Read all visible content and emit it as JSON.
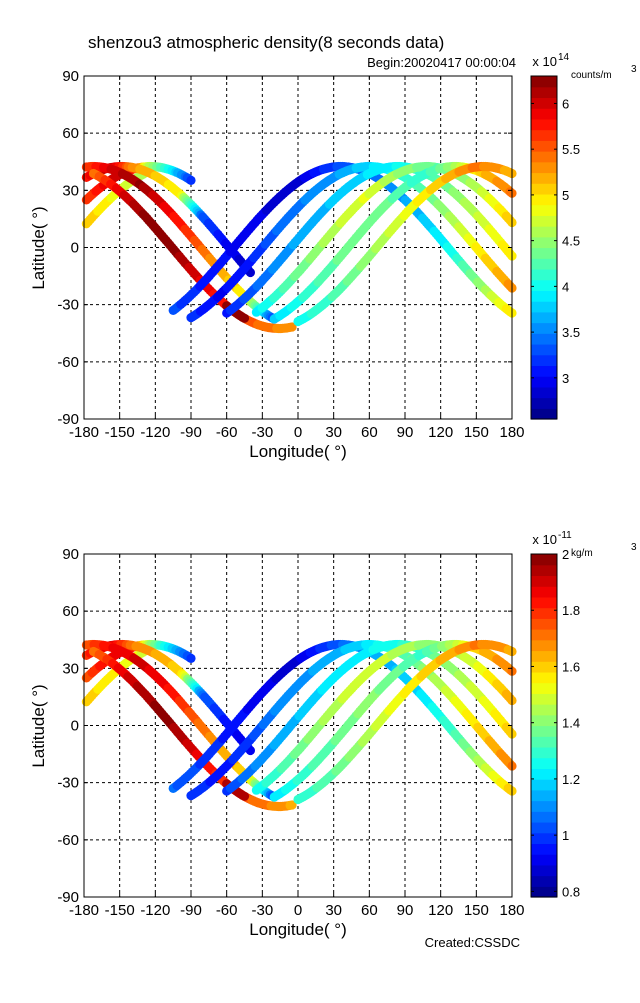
{
  "title": "shenzou3 atmospheric density(8 seconds data)",
  "begin_label": "Begin:20020417  00:00:04",
  "footer": "Created:CSSDC",
  "chart_data": [
    {
      "type": "scatter",
      "xlabel": "Longitude( °)",
      "ylabel": "Latitude( °)",
      "xlim": [
        -180,
        180
      ],
      "ylim": [
        -90,
        90
      ],
      "xticks": [
        "-180",
        "-150",
        "-120",
        "-90",
        "-60",
        "-30",
        "0",
        "30",
        "60",
        "90",
        "120",
        "150",
        "180"
      ],
      "yticks": [
        "90",
        "60",
        "30",
        "0",
        "-30",
        "-60",
        "-90"
      ],
      "grid": true,
      "colorbar": {
        "exponent_base": "x 10",
        "exponent": "14",
        "unit_main": "counts/m",
        "unit_sup": "3",
        "range": [
          2.55,
          6.3
        ],
        "tick_values": [
          3,
          3.5,
          4,
          4.5,
          5,
          5.5,
          6
        ],
        "tick_labels": [
          "3",
          "3.5",
          "4",
          "4.5",
          "5",
          "5.5",
          "6"
        ]
      },
      "tracks": [
        {
          "lon_start": -178,
          "lon_end": -130,
          "asc_node": -195,
          "values": [
            5.1,
            4.6
          ]
        },
        {
          "lon_start": -178,
          "lon_end": -90,
          "asc_node": -214,
          "values": [
            5.6,
            5.9,
            6.1,
            4.6,
            4.0,
            3.2
          ]
        },
        {
          "lon_start": -178,
          "lon_end": -40,
          "asc_node": -238,
          "values": [
            5.8,
            6.1,
            5.3,
            5.1,
            4.9,
            3.3,
            3.0,
            2.8
          ]
        },
        {
          "lon_start": -178,
          "lon_end": -20,
          "asc_node": -262,
          "values": [
            5.6,
            6.0,
            6.2,
            5.9,
            5.6,
            5.2,
            4.9,
            3.2
          ]
        },
        {
          "lon_start": -172,
          "lon_end": -5,
          "asc_node": -286,
          "values": [
            5.4,
            5.9,
            6.2,
            6.3,
            6.0,
            5.8,
            5.6,
            5.4,
            5.3
          ]
        },
        {
          "lon_start": -60,
          "lon_end": -45,
          "asc_node": -286,
          "values": [
            6.2,
            6.2
          ]
        },
        {
          "lon_start": -105,
          "lon_end": 180,
          "asc_node": -54,
          "values": [
            3.3,
            3.1,
            3.0,
            2.9,
            2.8,
            3.2,
            3.4,
            3.5,
            3.7,
            4.0,
            4.5,
            5.0
          ]
        },
        {
          "lon_start": -90,
          "lon_end": 180,
          "asc_node": -30,
          "values": [
            3.2,
            3.0,
            3.1,
            3.4,
            3.5,
            3.6,
            3.8,
            4.0,
            4.3,
            4.6,
            5.0,
            5.3
          ]
        },
        {
          "lon_start": -60,
          "lon_end": 180,
          "asc_node": -6,
          "values": [
            3.1,
            3.4,
            3.6,
            3.7,
            3.8,
            3.9,
            4.1,
            4.4,
            4.7,
            5.0
          ]
        },
        {
          "lon_start": -35,
          "lon_end": 180,
          "asc_node": 18,
          "values": [
            3.9,
            4.3,
            4.6,
            4.8,
            4.5,
            4.3,
            4.6,
            5.1
          ]
        },
        {
          "lon_start": -20,
          "lon_end": 180,
          "asc_node": 42,
          "values": [
            3.8,
            4.1,
            4.3,
            4.4,
            4.3,
            4.1,
            4.5,
            5.1,
            5.4
          ]
        },
        {
          "lon_start": 0,
          "lon_end": 180,
          "asc_node": 66,
          "values": [
            4.0,
            4.2,
            4.5,
            4.8,
            5.1,
            5.4,
            5.2
          ]
        }
      ]
    },
    {
      "type": "scatter",
      "xlabel": "Longitude( °)",
      "ylabel": "Latitude( °)",
      "xlim": [
        -180,
        180
      ],
      "ylim": [
        -90,
        90
      ],
      "xticks": [
        "-180",
        "-150",
        "-120",
        "-90",
        "-60",
        "-30",
        "0",
        "30",
        "60",
        "90",
        "120",
        "150",
        "180"
      ],
      "yticks": [
        "90",
        "60",
        "30",
        "0",
        "-30",
        "-60",
        "-90"
      ],
      "grid": true,
      "colorbar": {
        "exponent_base": "x 10",
        "exponent": "-11",
        "unit_main": "kg/m",
        "unit_sup": "3",
        "range": [
          0.78,
          2.0
        ],
        "tick_values": [
          0.8,
          1,
          1.2,
          1.4,
          1.6,
          1.8,
          2
        ],
        "tick_labels": [
          "0.8",
          "1",
          "1.2",
          "1.4",
          "1.6",
          "1.8",
          "2"
        ]
      },
      "tracks": [
        {
          "lon_start": -178,
          "lon_end": -130,
          "asc_node": -195,
          "values": [
            1.6,
            1.5
          ]
        },
        {
          "lon_start": -178,
          "lon_end": -90,
          "asc_node": -214,
          "values": [
            1.75,
            1.85,
            1.9,
            1.45,
            1.2,
            1.0
          ]
        },
        {
          "lon_start": -178,
          "lon_end": -40,
          "asc_node": -238,
          "values": [
            1.8,
            1.9,
            1.7,
            1.65,
            1.6,
            1.05,
            0.95,
            0.9
          ]
        },
        {
          "lon_start": -178,
          "lon_end": -20,
          "asc_node": -262,
          "values": [
            1.75,
            1.85,
            1.9,
            1.85,
            1.75,
            1.65,
            1.6,
            1.0
          ]
        },
        {
          "lon_start": -172,
          "lon_end": -5,
          "asc_node": -286,
          "values": [
            1.7,
            1.85,
            1.95,
            1.98,
            1.9,
            1.8,
            1.75,
            1.7,
            1.65
          ]
        },
        {
          "lon_start": -60,
          "lon_end": -45,
          "asc_node": -286,
          "values": [
            1.95,
            1.95
          ]
        },
        {
          "lon_start": -105,
          "lon_end": 180,
          "asc_node": -54,
          "values": [
            1.05,
            1.0,
            0.95,
            0.9,
            0.88,
            1.0,
            1.1,
            1.15,
            1.2,
            1.3,
            1.45,
            1.6
          ]
        },
        {
          "lon_start": -90,
          "lon_end": 180,
          "asc_node": -30,
          "values": [
            1.0,
            0.95,
            1.0,
            1.1,
            1.12,
            1.15,
            1.2,
            1.3,
            1.4,
            1.5,
            1.6,
            1.7
          ]
        },
        {
          "lon_start": -60,
          "lon_end": 180,
          "asc_node": -6,
          "values": [
            1.0,
            1.1,
            1.15,
            1.2,
            1.22,
            1.25,
            1.3,
            1.4,
            1.5,
            1.6
          ]
        },
        {
          "lon_start": -35,
          "lon_end": 180,
          "asc_node": 18,
          "values": [
            1.25,
            1.35,
            1.45,
            1.5,
            1.45,
            1.4,
            1.5,
            1.65
          ]
        },
        {
          "lon_start": -20,
          "lon_end": 180,
          "asc_node": 42,
          "values": [
            1.2,
            1.3,
            1.35,
            1.4,
            1.38,
            1.3,
            1.45,
            1.62,
            1.7
          ]
        },
        {
          "lon_start": 0,
          "lon_end": 180,
          "asc_node": 66,
          "values": [
            1.28,
            1.35,
            1.45,
            1.55,
            1.62,
            1.7,
            1.65
          ]
        }
      ]
    }
  ]
}
